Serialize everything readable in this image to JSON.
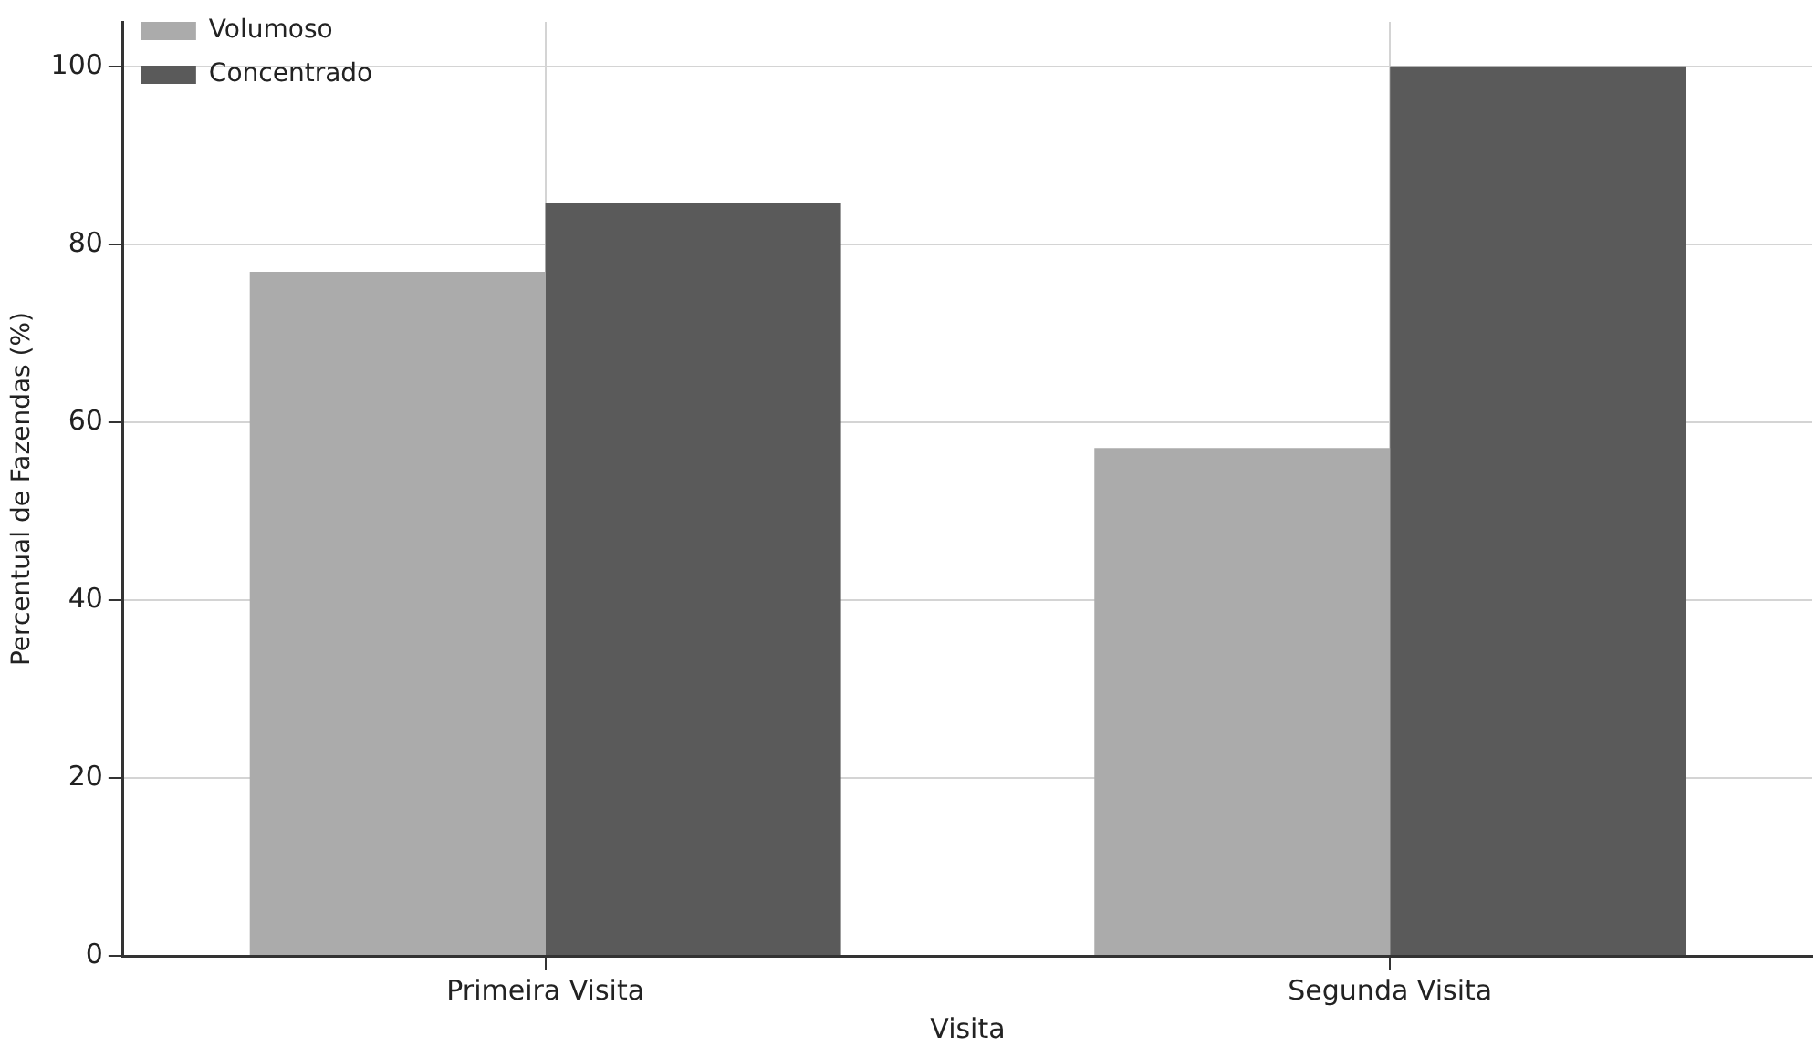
{
  "chart_data": {
    "type": "bar",
    "xlabel": "Visita",
    "ylabel": "Percentual de Fazendas (%)",
    "categories": [
      "Primeira Visita",
      "Segunda Visita"
    ],
    "series": [
      {
        "name": "Volumoso",
        "color": "#ababab",
        "values": [
          76.9,
          57.1
        ]
      },
      {
        "name": "Concentrado",
        "color": "#5a5a5a",
        "values": [
          84.6,
          100
        ]
      }
    ],
    "ylim": [
      0,
      105
    ],
    "yticks": [
      0,
      20,
      40,
      60,
      80,
      100
    ],
    "grid": true,
    "legend": "top left"
  }
}
